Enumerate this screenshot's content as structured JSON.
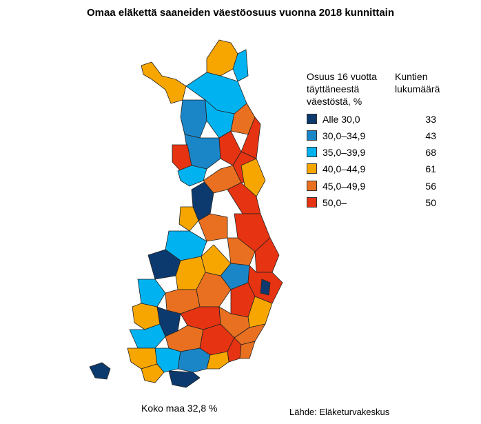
{
  "title": "Omaa eläkettä saaneiden väestöosuus vuonna 2018 kunnittain",
  "legend": {
    "share_heading": [
      "Osuus 16 vuotta",
      "täyttäneestä",
      "väestöstä, %"
    ],
    "count_heading": [
      "Kuntien",
      "lukumäärä"
    ],
    "classes": [
      {
        "label": "Alle 30,0",
        "count": "33",
        "color": "#0d3a6e"
      },
      {
        "label": "30,0–34,9",
        "count": "43",
        "color": "#1a86c8"
      },
      {
        "label": "35,0–39,9",
        "count": "68",
        "color": "#00b3f0"
      },
      {
        "label": "40,0–44,9",
        "count": "61",
        "color": "#f7a600"
      },
      {
        "label": "45,0–49,9",
        "count": "56",
        "color": "#e87020"
      },
      {
        "label": "50,0–",
        "count": "50",
        "color": "#e63312"
      }
    ]
  },
  "total": "Koko maa 32,8 %",
  "source": "Lähde: Eläketurvakeskus"
}
